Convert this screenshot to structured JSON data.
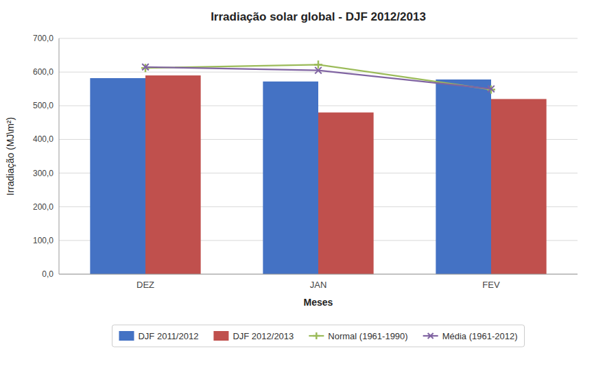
{
  "chart_data": {
    "type": "bar",
    "title": "Irradiação solar global - DJF 2012/2013",
    "xlabel": "Meses",
    "ylabel": "Irradiação (MJ\\m²)",
    "categories": [
      "DEZ",
      "JAN",
      "FEV"
    ],
    "series": [
      {
        "name": "DJF 2011/2012",
        "type": "bar",
        "color": "#4472C4",
        "values": [
          582,
          572,
          578
        ]
      },
      {
        "name": "DJF 2012/2013",
        "type": "bar",
        "color": "#C0504D",
        "values": [
          590,
          480,
          520
        ]
      },
      {
        "name": "Normal (1961-1990)",
        "type": "line",
        "color": "#9BBB59",
        "marker": "plus",
        "line_style": "solid",
        "values": [
          612,
          622,
          548
        ]
      },
      {
        "name": "Média (1961-2012)",
        "type": "line",
        "color": "#8064A2",
        "marker": "x",
        "line_style": "solid",
        "values": [
          615,
          605,
          550
        ]
      }
    ],
    "ylim": [
      0,
      700
    ],
    "yticks": [
      {
        "value": 0,
        "label": "0,0"
      },
      {
        "value": 100,
        "label": "100,0"
      },
      {
        "value": 200,
        "label": "200,0"
      },
      {
        "value": 300,
        "label": "300,0"
      },
      {
        "value": 400,
        "label": "400,0"
      },
      {
        "value": 500,
        "label": "500,0"
      },
      {
        "value": 600,
        "label": "600,0"
      },
      {
        "value": 700,
        "label": "700,0"
      }
    ],
    "grid": true,
    "legend": "bottom"
  }
}
